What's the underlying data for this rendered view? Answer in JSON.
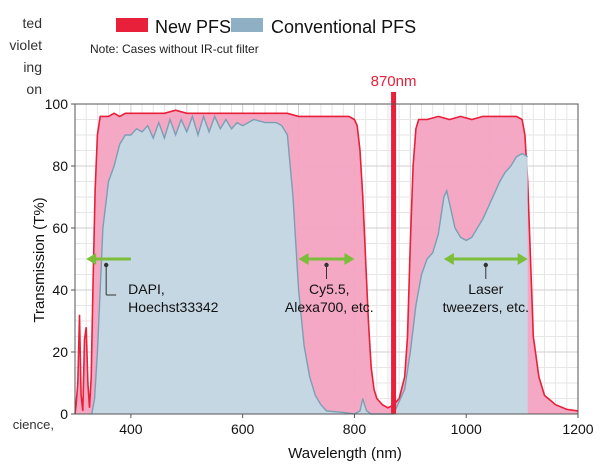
{
  "left_edge_text": [
    "ted",
    "violet",
    "ing",
    "on"
  ],
  "left_edge_bottom": "cience,",
  "chart_data": {
    "type": "area",
    "xlabel": "Wavelength (nm)",
    "ylabel": "Transmission (T%)",
    "xlim": [
      300,
      1200
    ],
    "ylim": [
      0,
      100
    ],
    "x_ticks": [
      400,
      600,
      800,
      1000,
      1200
    ],
    "y_ticks": [
      0,
      20,
      40,
      60,
      80,
      100
    ],
    "grid": true,
    "note": "Note: Cases without IR-cut filter",
    "series": [
      {
        "name": "New PFS",
        "color": "#e8203a",
        "fill": "#f4a3c1",
        "points": [
          [
            300,
            0
          ],
          [
            302,
            3
          ],
          [
            305,
            10
          ],
          [
            308,
            32
          ],
          [
            311,
            6
          ],
          [
            314,
            1
          ],
          [
            317,
            24
          ],
          [
            320,
            28
          ],
          [
            323,
            10
          ],
          [
            326,
            2
          ],
          [
            329,
            12
          ],
          [
            332,
            40
          ],
          [
            336,
            72
          ],
          [
            340,
            90
          ],
          [
            345,
            96
          ],
          [
            350,
            96
          ],
          [
            360,
            96
          ],
          [
            370,
            97
          ],
          [
            380,
            96
          ],
          [
            390,
            97
          ],
          [
            400,
            97
          ],
          [
            420,
            97
          ],
          [
            440,
            97
          ],
          [
            460,
            97
          ],
          [
            480,
            98
          ],
          [
            500,
            97
          ],
          [
            520,
            97
          ],
          [
            540,
            97
          ],
          [
            560,
            97
          ],
          [
            580,
            97
          ],
          [
            600,
            97
          ],
          [
            620,
            97
          ],
          [
            640,
            97
          ],
          [
            660,
            97
          ],
          [
            680,
            97
          ],
          [
            700,
            96
          ],
          [
            720,
            96
          ],
          [
            740,
            96
          ],
          [
            760,
            96
          ],
          [
            780,
            96
          ],
          [
            790,
            96
          ],
          [
            800,
            95
          ],
          [
            805,
            93
          ],
          [
            810,
            85
          ],
          [
            815,
            70
          ],
          [
            820,
            50
          ],
          [
            825,
            30
          ],
          [
            830,
            15
          ],
          [
            835,
            8
          ],
          [
            840,
            5
          ],
          [
            850,
            3
          ],
          [
            860,
            2
          ],
          [
            870,
            3
          ],
          [
            880,
            5
          ],
          [
            890,
            12
          ],
          [
            895,
            25
          ],
          [
            900,
            55
          ],
          [
            905,
            80
          ],
          [
            910,
            92
          ],
          [
            915,
            95
          ],
          [
            930,
            95
          ],
          [
            950,
            96
          ],
          [
            970,
            95
          ],
          [
            990,
            96
          ],
          [
            1010,
            95
          ],
          [
            1030,
            96
          ],
          [
            1050,
            96
          ],
          [
            1070,
            96
          ],
          [
            1090,
            96
          ],
          [
            1100,
            95
          ],
          [
            1105,
            90
          ],
          [
            1110,
            75
          ],
          [
            1115,
            50
          ],
          [
            1120,
            25
          ],
          [
            1130,
            12
          ],
          [
            1140,
            6
          ],
          [
            1160,
            3
          ],
          [
            1180,
            1.5
          ],
          [
            1200,
            1
          ]
        ]
      },
      {
        "name": "Conventional PFS",
        "color": "#7a9fb4",
        "fill": "#c3d9e6",
        "points": [
          [
            330,
            0
          ],
          [
            335,
            5
          ],
          [
            340,
            20
          ],
          [
            345,
            40
          ],
          [
            350,
            60
          ],
          [
            360,
            75
          ],
          [
            370,
            80
          ],
          [
            380,
            87
          ],
          [
            390,
            90
          ],
          [
            400,
            90
          ],
          [
            410,
            92
          ],
          [
            420,
            91
          ],
          [
            430,
            93
          ],
          [
            440,
            89
          ],
          [
            450,
            94
          ],
          [
            460,
            89
          ],
          [
            470,
            95
          ],
          [
            480,
            90
          ],
          [
            490,
            95
          ],
          [
            500,
            91
          ],
          [
            510,
            96
          ],
          [
            520,
            90
          ],
          [
            530,
            96
          ],
          [
            540,
            91
          ],
          [
            550,
            96
          ],
          [
            560,
            92
          ],
          [
            570,
            95
          ],
          [
            580,
            92
          ],
          [
            590,
            94
          ],
          [
            600,
            93
          ],
          [
            620,
            95
          ],
          [
            640,
            94
          ],
          [
            660,
            94
          ],
          [
            670,
            93
          ],
          [
            680,
            90
          ],
          [
            690,
            70
          ],
          [
            700,
            40
          ],
          [
            710,
            22
          ],
          [
            720,
            12
          ],
          [
            730,
            6
          ],
          [
            740,
            3
          ],
          [
            750,
            1
          ],
          [
            780,
            0.5
          ],
          [
            800,
            0
          ],
          [
            810,
            1
          ],
          [
            815,
            5
          ],
          [
            818,
            3
          ],
          [
            822,
            1
          ],
          [
            830,
            0
          ],
          [
            870,
            0
          ],
          [
            890,
            8
          ],
          [
            900,
            20
          ],
          [
            910,
            35
          ],
          [
            920,
            45
          ],
          [
            930,
            50
          ],
          [
            940,
            52
          ],
          [
            950,
            58
          ],
          [
            960,
            70
          ],
          [
            965,
            72
          ],
          [
            970,
            68
          ],
          [
            980,
            60
          ],
          [
            990,
            57
          ],
          [
            1000,
            56
          ],
          [
            1010,
            57
          ],
          [
            1020,
            60
          ],
          [
            1030,
            63
          ],
          [
            1040,
            67
          ],
          [
            1050,
            71
          ],
          [
            1060,
            75
          ],
          [
            1070,
            78
          ],
          [
            1080,
            80
          ],
          [
            1090,
            83
          ],
          [
            1100,
            84
          ],
          [
            1110,
            83
          ]
        ]
      }
    ],
    "marker": {
      "x": 870,
      "label": "870nm",
      "color": "#e8203a"
    },
    "annotations": [
      {
        "lines": [
          "DAPI,",
          "Hoechst33342"
        ],
        "arrow": "left",
        "arrow_x": [
          320,
          400
        ],
        "arrow_y": 50,
        "text_x": 350,
        "text_y": 42
      },
      {
        "lines": [
          "Cy5.5,",
          "Alexa700, etc."
        ],
        "arrow": "both",
        "arrow_x": [
          700,
          800
        ],
        "arrow_y": 50,
        "text_x": 755,
        "text_y": 42
      },
      {
        "lines": [
          "Laser",
          "tweezers, etc."
        ],
        "arrow": "both",
        "arrow_x": [
          960,
          1110
        ],
        "arrow_y": 50,
        "text_x": 1035,
        "text_y": 42
      }
    ],
    "annotation_arrow_color": "#7cbd3a"
  }
}
